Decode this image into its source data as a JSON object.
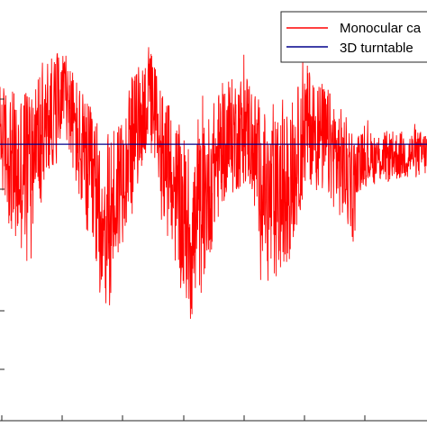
{
  "chart_data": {
    "type": "line",
    "title": "",
    "xlabel": "",
    "ylabel": "",
    "grid": false,
    "legend_placement": "top-right",
    "series": [
      {
        "name": "Monocular ca",
        "color": "#ff0000",
        "kind": "noisy-signal",
        "envelope_profile": [
          {
            "t": 0.0,
            "upper": 60,
            "lower": -40
          },
          {
            "t": 0.04,
            "upper": 55,
            "lower": -110
          },
          {
            "t": 0.1,
            "upper": 80,
            "lower": -60
          },
          {
            "t": 0.15,
            "upper": 85,
            "lower": 10
          },
          {
            "t": 0.2,
            "upper": 50,
            "lower": -90
          },
          {
            "t": 0.25,
            "upper": 20,
            "lower": -160
          },
          {
            "t": 0.3,
            "upper": 60,
            "lower": -70
          },
          {
            "t": 0.35,
            "upper": 90,
            "lower": -10
          },
          {
            "t": 0.4,
            "upper": 40,
            "lower": -100
          },
          {
            "t": 0.45,
            "upper": 10,
            "lower": -170
          },
          {
            "t": 0.52,
            "upper": 60,
            "lower": -60
          },
          {
            "t": 0.58,
            "upper": 70,
            "lower": -40
          },
          {
            "t": 0.63,
            "upper": 30,
            "lower": -130
          },
          {
            "t": 0.67,
            "upper": 40,
            "lower": -120
          },
          {
            "t": 0.72,
            "upper": 75,
            "lower": -40
          },
          {
            "t": 0.78,
            "upper": 50,
            "lower": -60
          },
          {
            "t": 0.83,
            "upper": 20,
            "lower": -90
          },
          {
            "t": 0.84,
            "upper": 15,
            "lower": -40
          },
          {
            "t": 1.0,
            "upper": 15,
            "lower": -30
          }
        ]
      },
      {
        "name": "3D turntable",
        "color": "#00008b",
        "kind": "constant",
        "value": 0
      }
    ],
    "ylim": [
      -230,
      120
    ]
  }
}
